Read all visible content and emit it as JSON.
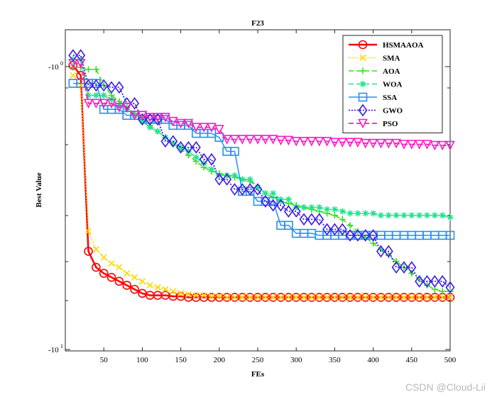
{
  "chart_data": {
    "type": "line",
    "title": "F23",
    "xlabel": "FEs",
    "ylabel": "Best Value",
    "xlim": [
      0,
      500
    ],
    "y_scale": "log",
    "ylim": [
      -11.0,
      -9.55
    ],
    "x_ticks": [
      50,
      100,
      150,
      200,
      250,
      300,
      350,
      400,
      450,
      500
    ],
    "y_tick_labels": [
      {
        "value": -10,
        "label": "-10",
        "exp": "0"
      },
      {
        "value": -10,
        "label": "-10",
        "exp": "1"
      }
    ],
    "grid": false,
    "legend_position": "top-right",
    "x": [
      10,
      20,
      30,
      40,
      50,
      60,
      70,
      80,
      90,
      100,
      110,
      120,
      130,
      140,
      150,
      160,
      170,
      180,
      190,
      200,
      210,
      220,
      230,
      240,
      250,
      260,
      270,
      280,
      290,
      300,
      310,
      320,
      330,
      340,
      350,
      360,
      370,
      380,
      390,
      400,
      410,
      420,
      430,
      440,
      450,
      460,
      470,
      480,
      490,
      500
    ],
    "series": [
      {
        "name": "HSMAAOA",
        "color": "#ff0000",
        "marker": "circle",
        "dash": "",
        "width": 2.5,
        "values": [
          -9.65,
          -9.7,
          -10.58,
          -10.66,
          -10.69,
          -10.71,
          -10.73,
          -10.75,
          -10.77,
          -10.79,
          -10.8,
          -10.8,
          -10.8,
          -10.805,
          -10.805,
          -10.81,
          -10.81,
          -10.81,
          -10.81,
          -10.81,
          -10.81,
          -10.81,
          -10.81,
          -10.81,
          -10.81,
          -10.81,
          -10.81,
          -10.81,
          -10.81,
          -10.81,
          -10.81,
          -10.81,
          -10.81,
          -10.81,
          -10.81,
          -10.81,
          -10.81,
          -10.81,
          -10.81,
          -10.81,
          -10.81,
          -10.81,
          -10.81,
          -10.81,
          -10.81,
          -10.81,
          -10.81,
          -10.81,
          -10.81,
          -10.81
        ]
      },
      {
        "name": "SMA",
        "color": "#ffd700",
        "marker": "x",
        "dash": "2,2",
        "width": 1.5,
        "values": [
          -9.7,
          -9.75,
          -10.48,
          -10.57,
          -10.61,
          -10.64,
          -10.66,
          -10.69,
          -10.71,
          -10.73,
          -10.75,
          -10.76,
          -10.77,
          -10.78,
          -10.79,
          -10.795,
          -10.8,
          -10.8,
          -10.805,
          -10.805,
          -10.81,
          -10.81,
          -10.81,
          -10.81,
          -10.81,
          -10.81,
          -10.81,
          -10.81,
          -10.81,
          -10.81,
          -10.81,
          -10.81,
          -10.81,
          -10.81,
          -10.81,
          -10.81,
          -10.81,
          -10.81,
          -10.81,
          -10.81,
          -10.81,
          -10.81,
          -10.81,
          -10.81,
          -10.81,
          -10.81,
          -10.81,
          -10.81,
          -10.81,
          -10.81
        ]
      },
      {
        "name": "AOA",
        "color": "#33e01a",
        "marker": "plus",
        "dash": "7,4",
        "width": 1.5,
        "values": [
          -9.66,
          -9.66,
          -9.67,
          -9.67,
          -9.75,
          -9.8,
          -9.83,
          -9.86,
          -9.89,
          -9.92,
          -9.95,
          -9.98,
          -10.01,
          -10.04,
          -10.07,
          -10.1,
          -10.13,
          -10.16,
          -10.18,
          -10.19,
          -10.2,
          -10.21,
          -10.22,
          -10.23,
          -10.26,
          -10.29,
          -10.31,
          -10.33,
          -10.34,
          -10.35,
          -10.36,
          -10.37,
          -10.38,
          -10.39,
          -10.4,
          -10.42,
          -10.45,
          -10.48,
          -10.51,
          -10.54,
          -10.57,
          -10.6,
          -10.63,
          -10.66,
          -10.69,
          -10.72,
          -10.75,
          -10.77,
          -10.78,
          -10.78
        ]
      },
      {
        "name": "WOA",
        "color": "#1ae68c",
        "marker": "star",
        "dash": "7,4",
        "width": 1.5,
        "values": [
          -9.62,
          -9.62,
          -9.8,
          -9.8,
          -9.8,
          -9.82,
          -9.85,
          -9.87,
          -9.9,
          -9.93,
          -9.96,
          -9.98,
          -10.01,
          -10.04,
          -10.06,
          -10.08,
          -10.11,
          -10.14,
          -10.17,
          -10.2,
          -10.2,
          -10.2,
          -10.22,
          -10.22,
          -10.26,
          -10.29,
          -10.29,
          -10.32,
          -10.32,
          -10.36,
          -10.36,
          -10.36,
          -10.36,
          -10.37,
          -10.37,
          -10.38,
          -10.39,
          -10.39,
          -10.39,
          -10.39,
          -10.4,
          -10.4,
          -10.4,
          -10.4,
          -10.4,
          -10.4,
          -10.4,
          -10.4,
          -10.4,
          -10.41
        ]
      },
      {
        "name": "SSA",
        "color": "#1e90ff",
        "marker": "square",
        "dash": "",
        "width": 1.5,
        "values": [
          -9.74,
          -9.74,
          -9.74,
          -9.74,
          -9.87,
          -9.87,
          -9.87,
          -9.9,
          -9.9,
          -9.9,
          -9.92,
          -9.92,
          -9.92,
          -9.95,
          -9.95,
          -9.95,
          -9.99,
          -9.99,
          -9.99,
          -10.01,
          -10.08,
          -10.08,
          -10.28,
          -10.28,
          -10.33,
          -10.33,
          -10.33,
          -10.45,
          -10.45,
          -10.49,
          -10.49,
          -10.49,
          -10.5,
          -10.5,
          -10.5,
          -10.5,
          -10.5,
          -10.5,
          -10.5,
          -10.5,
          -10.5,
          -10.5,
          -10.5,
          -10.5,
          -10.5,
          -10.5,
          -10.5,
          -10.5,
          -10.5,
          -10.5
        ]
      },
      {
        "name": "GWO",
        "color": "#3a1ee6",
        "marker": "diamond",
        "dash": "2,2",
        "width": 1.8,
        "values": [
          -9.6,
          -9.6,
          -9.75,
          -9.75,
          -9.75,
          -9.76,
          -9.76,
          -9.84,
          -9.84,
          -9.92,
          -9.92,
          -9.92,
          -10.03,
          -10.03,
          -10.06,
          -10.06,
          -10.06,
          -10.12,
          -10.12,
          -10.22,
          -10.22,
          -10.27,
          -10.27,
          -10.27,
          -10.27,
          -10.33,
          -10.35,
          -10.35,
          -10.38,
          -10.38,
          -10.42,
          -10.42,
          -10.42,
          -10.47,
          -10.47,
          -10.47,
          -10.5,
          -10.5,
          -10.5,
          -10.5,
          -10.58,
          -10.58,
          -10.66,
          -10.66,
          -10.66,
          -10.73,
          -10.73,
          -10.73,
          -10.73,
          -10.76
        ]
      },
      {
        "name": "PSO",
        "color": "#ff1ac6",
        "marker": "triangle-down",
        "dash": "7,4",
        "width": 1.8,
        "values": [
          -9.64,
          -9.64,
          -9.84,
          -9.84,
          -9.84,
          -9.84,
          -9.86,
          -9.86,
          -9.9,
          -9.9,
          -9.91,
          -9.91,
          -9.91,
          -9.93,
          -9.94,
          -9.94,
          -9.96,
          -9.96,
          -9.96,
          -9.97,
          -10.02,
          -10.02,
          -10.02,
          -10.02,
          -10.02,
          -10.02,
          -10.02,
          -10.025,
          -10.025,
          -10.03,
          -10.03,
          -10.03,
          -10.03,
          -10.03,
          -10.035,
          -10.035,
          -10.035,
          -10.035,
          -10.04,
          -10.04,
          -10.04,
          -10.04,
          -10.04,
          -10.045,
          -10.045,
          -10.045,
          -10.045,
          -10.05,
          -10.05,
          -10.05
        ]
      }
    ]
  },
  "watermark": "CSDN @Cloud-Lii"
}
